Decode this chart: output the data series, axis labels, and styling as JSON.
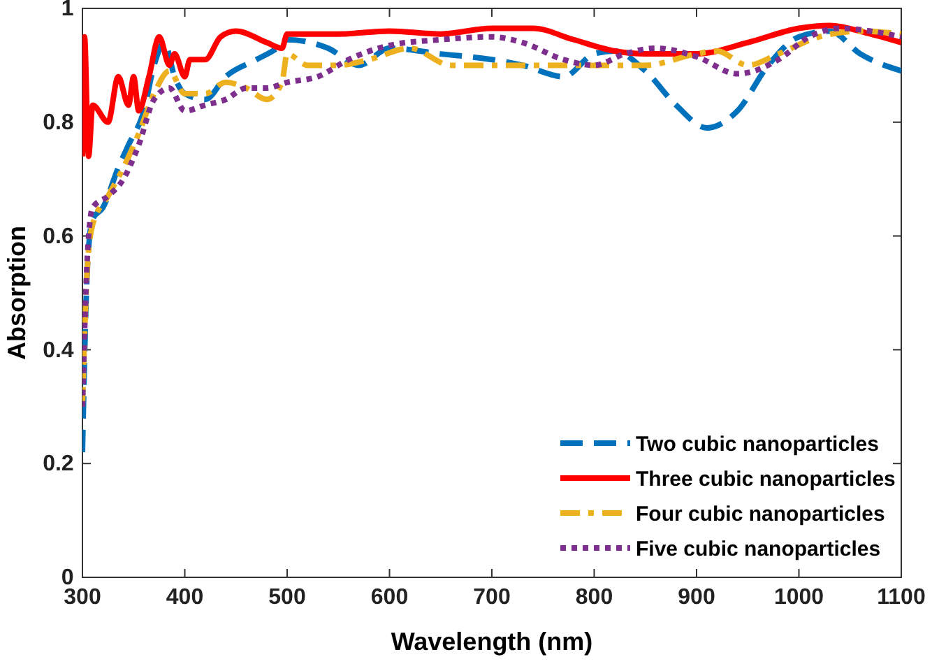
{
  "chart_data": {
    "type": "line",
    "xlabel": "Wavelength (nm)",
    "ylabel": "Absorption",
    "xlim": [
      300,
      1100
    ],
    "xticks": [
      300,
      400,
      500,
      600,
      700,
      800,
      900,
      1000,
      1100
    ],
    "ylim": [
      0,
      1
    ],
    "yticks": [
      0,
      0.2,
      0.4,
      0.6,
      0.8,
      1
    ],
    "grid": false,
    "legend": "bottom right",
    "marker": "none",
    "series": [
      {
        "name": "Two cubic nanoparticles",
        "color": "#0072bd",
        "line_style": "dashed",
        "x": [
          300,
          305,
          310,
          320,
          335,
          345,
          360,
          370,
          380,
          390,
          400,
          420,
          440,
          470,
          490,
          500,
          540,
          570,
          600,
          650,
          700,
          730,
          770,
          800,
          820,
          850,
          880,
          910,
          940,
          970,
          1000,
          1030,
          1060,
          1100
        ],
        "values": [
          0.22,
          0.55,
          0.63,
          0.65,
          0.72,
          0.76,
          0.82,
          0.9,
          0.94,
          0.88,
          0.85,
          0.84,
          0.88,
          0.91,
          0.93,
          0.945,
          0.93,
          0.9,
          0.93,
          0.92,
          0.91,
          0.9,
          0.88,
          0.92,
          0.925,
          0.89,
          0.83,
          0.79,
          0.82,
          0.9,
          0.95,
          0.96,
          0.92,
          0.89
        ]
      },
      {
        "name": "Three cubic nanoparticles",
        "color": "#ff0000",
        "line_style": "solid",
        "x": [
          300,
          302,
          306,
          310,
          325,
          335,
          345,
          350,
          355,
          365,
          375,
          385,
          390,
          400,
          405,
          420,
          435,
          450,
          480,
          495,
          500,
          550,
          600,
          650,
          700,
          740,
          780,
          820,
          850,
          900,
          950,
          1000,
          1030,
          1070,
          1100
        ],
        "values": [
          0.74,
          0.95,
          0.74,
          0.83,
          0.8,
          0.88,
          0.83,
          0.88,
          0.82,
          0.88,
          0.95,
          0.9,
          0.92,
          0.88,
          0.91,
          0.91,
          0.95,
          0.96,
          0.94,
          0.93,
          0.955,
          0.955,
          0.96,
          0.955,
          0.965,
          0.965,
          0.945,
          0.925,
          0.92,
          0.92,
          0.94,
          0.965,
          0.97,
          0.955,
          0.94
        ]
      },
      {
        "name": "Four cubic nanoparticles",
        "color": "#edb120",
        "line_style": "dashdot",
        "x": [
          300,
          305,
          310,
          325,
          340,
          355,
          370,
          385,
          400,
          420,
          440,
          460,
          480,
          495,
          500,
          520,
          550,
          580,
          620,
          660,
          700,
          760,
          800,
          850,
          900,
          920,
          950,
          980,
          1020,
          1060,
          1100
        ],
        "values": [
          0.3,
          0.55,
          0.62,
          0.67,
          0.72,
          0.78,
          0.85,
          0.89,
          0.85,
          0.85,
          0.87,
          0.86,
          0.84,
          0.87,
          0.92,
          0.9,
          0.9,
          0.91,
          0.93,
          0.9,
          0.9,
          0.9,
          0.9,
          0.9,
          0.92,
          0.925,
          0.9,
          0.92,
          0.95,
          0.96,
          0.955
        ]
      },
      {
        "name": "Five cubic nanoparticles",
        "color": "#7e2f8e",
        "line_style": "dotted",
        "x": [
          300,
          305,
          310,
          325,
          340,
          355,
          370,
          385,
          400,
          420,
          440,
          460,
          480,
          500,
          530,
          560,
          600,
          650,
          700,
          730,
          770,
          800,
          830,
          860,
          900,
          940,
          980,
          1010,
          1040,
          1070,
          1100
        ],
        "values": [
          0.3,
          0.57,
          0.65,
          0.67,
          0.7,
          0.76,
          0.84,
          0.86,
          0.82,
          0.83,
          0.84,
          0.86,
          0.86,
          0.87,
          0.88,
          0.91,
          0.935,
          0.945,
          0.95,
          0.94,
          0.91,
          0.9,
          0.92,
          0.93,
          0.915,
          0.885,
          0.91,
          0.95,
          0.965,
          0.96,
          0.95
        ]
      }
    ]
  }
}
